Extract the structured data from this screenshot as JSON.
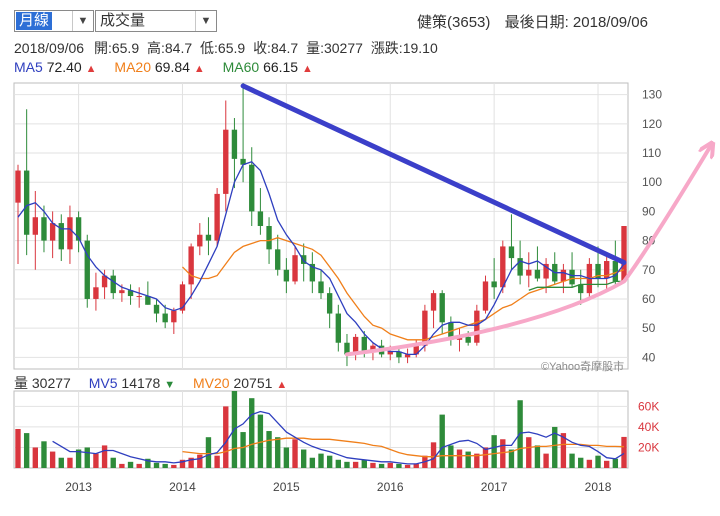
{
  "controls": {
    "period": {
      "value": "月線"
    },
    "indicator": {
      "value": "成交量"
    }
  },
  "header": {
    "stock": "健策(3653)",
    "last_date_label": "最後日期:",
    "last_date": "2018/09/06"
  },
  "quote": {
    "date": "2018/09/06",
    "open_label": "開:",
    "open": "65.9",
    "high_label": "高:",
    "high": "84.7",
    "low_label": "低:",
    "low": "65.9",
    "close_label": "收:",
    "close": "84.7",
    "volume_label": "量:",
    "volume": "30277",
    "change_label": "漲跌:",
    "change": "19.10"
  },
  "ma_legend": [
    {
      "name": "MA5",
      "value": "72.40",
      "dir": "▲",
      "color": "#2f3fbf"
    },
    {
      "name": "MA20",
      "value": "69.84",
      "dir": "▲",
      "color": "#f07f1a"
    },
    {
      "name": "MA60",
      "value": "66.15",
      "dir": "▲",
      "color": "#2e8b3a"
    }
  ],
  "vol_legend": {
    "vol": {
      "label": "量",
      "value": "30277"
    },
    "mv5": {
      "label": "MV5",
      "value": "14178",
      "dir": "▼",
      "color": "#2f3fbf"
    },
    "mv20": {
      "label": "MV20",
      "value": "20751",
      "dir": "▲",
      "color": "#f07f1a"
    }
  },
  "watermark": "©Yahoo奇摩股市",
  "colors": {
    "up": "#d9363e",
    "down": "#2e8b3a",
    "trendline": "#3b3fc9",
    "arrow": "#f7a8c8",
    "grid": "#e2e2e2"
  },
  "chart_data": [
    {
      "type": "candlestick",
      "ylim": [
        36,
        134
      ],
      "yticks": [
        40,
        50,
        60,
        70,
        80,
        90,
        100,
        110,
        120,
        130
      ],
      "x_labels": [
        "2013",
        "2014",
        "2015",
        "2016",
        "2017",
        "2018"
      ],
      "x_label_index": [
        7,
        19,
        31,
        43,
        55,
        67
      ],
      "ohlc": [
        [
          93,
          106,
          72,
          104
        ],
        [
          104,
          125,
          75,
          82
        ],
        [
          82,
          97,
          70,
          88
        ],
        [
          88,
          92,
          76,
          80
        ],
        [
          80,
          90,
          74,
          86
        ],
        [
          86,
          89,
          73,
          77
        ],
        [
          77,
          92,
          72,
          88
        ],
        [
          88,
          90,
          76,
          80
        ],
        [
          80,
          82,
          57,
          60
        ],
        [
          60,
          69,
          56,
          64
        ],
        [
          64,
          70,
          60,
          68
        ],
        [
          68,
          70,
          60,
          62
        ],
        [
          62,
          65,
          59,
          63
        ],
        [
          63,
          65,
          58,
          61
        ],
        [
          61,
          64,
          57,
          61
        ],
        [
          61,
          66,
          58,
          58
        ],
        [
          58,
          60,
          52,
          55
        ],
        [
          55,
          58,
          50,
          52
        ],
        [
          52,
          57,
          48,
          56
        ],
        [
          56,
          66,
          55,
          65
        ],
        [
          65,
          79,
          60,
          78
        ],
        [
          78,
          86,
          75,
          82
        ],
        [
          82,
          88,
          75,
          80
        ],
        [
          80,
          98,
          78,
          96
        ],
        [
          96,
          128,
          90,
          118
        ],
        [
          118,
          122,
          98,
          108
        ],
        [
          108,
          134,
          100,
          106
        ],
        [
          106,
          112,
          85,
          90
        ],
        [
          90,
          98,
          82,
          85
        ],
        [
          85,
          88,
          72,
          77
        ],
        [
          77,
          82,
          68,
          70
        ],
        [
          70,
          74,
          62,
          66
        ],
        [
          66,
          78,
          65,
          75
        ],
        [
          75,
          79,
          66,
          72
        ],
        [
          72,
          76,
          62,
          66
        ],
        [
          66,
          70,
          60,
          62
        ],
        [
          62,
          64,
          50,
          55
        ],
        [
          55,
          58,
          42,
          45
        ],
        [
          45,
          48,
          37,
          41
        ],
        [
          41,
          48,
          39,
          47
        ],
        [
          47,
          49,
          40,
          42
        ],
        [
          42,
          45,
          39,
          44
        ],
        [
          44,
          46,
          40,
          41
        ],
        [
          41,
          44,
          39,
          42
        ],
        [
          42,
          44,
          38,
          40
        ],
        [
          40,
          43,
          38,
          41
        ],
        [
          41,
          46,
          40,
          44
        ],
        [
          44,
          58,
          42,
          56
        ],
        [
          56,
          63,
          50,
          62
        ],
        [
          62,
          63,
          48,
          52
        ],
        [
          52,
          54,
          44,
          46
        ],
        [
          46,
          50,
          42,
          47
        ],
        [
          47,
          49,
          44,
          45
        ],
        [
          45,
          58,
          44,
          56
        ],
        [
          56,
          68,
          55,
          66
        ],
        [
          66,
          74,
          60,
          64
        ],
        [
          64,
          80,
          62,
          78
        ],
        [
          78,
          89,
          70,
          74
        ],
        [
          74,
          80,
          65,
          68
        ],
        [
          68,
          76,
          64,
          70
        ],
        [
          70,
          78,
          66,
          67
        ],
        [
          67,
          74,
          62,
          72
        ],
        [
          72,
          76,
          65,
          66
        ],
        [
          66,
          72,
          62,
          70
        ],
        [
          70,
          76,
          64,
          65
        ],
        [
          65,
          70,
          58,
          62
        ],
        [
          62,
          74,
          60,
          72
        ],
        [
          72,
          78,
          64,
          67
        ],
        [
          67,
          76,
          63,
          73
        ],
        [
          73,
          80,
          64,
          66
        ],
        [
          66,
          85,
          66,
          85
        ]
      ],
      "ma5": [
        88,
        92,
        93,
        90,
        86,
        84,
        84,
        81,
        75,
        71,
        68,
        66,
        64,
        63,
        62,
        61,
        60,
        57,
        56,
        57,
        61,
        66,
        72,
        78,
        89,
        100,
        106,
        107,
        104,
        96,
        87,
        82,
        78,
        73,
        71,
        70,
        67,
        61,
        55,
        52,
        48,
        45,
        43,
        42,
        42,
        41,
        41,
        44,
        48,
        51,
        52,
        52,
        51,
        51,
        53,
        58,
        64,
        70,
        73,
        72,
        73,
        71,
        69,
        69,
        68,
        68,
        67,
        67,
        67,
        68,
        72
      ],
      "ma20": [
        null,
        null,
        null,
        null,
        null,
        null,
        null,
        null,
        null,
        null,
        null,
        null,
        null,
        null,
        null,
        null,
        null,
        null,
        null,
        71,
        68,
        67,
        67,
        68,
        72,
        76,
        78,
        79,
        80,
        80,
        81,
        80,
        79,
        78,
        77,
        75,
        71,
        67,
        62,
        58,
        54,
        51,
        50,
        48,
        47,
        46,
        46,
        46,
        47,
        48,
        49,
        50,
        51,
        52,
        53,
        55,
        57,
        58,
        60,
        62,
        63,
        64,
        65,
        66,
        67,
        67,
        67,
        68,
        68,
        69,
        70
      ],
      "ma60": [
        null,
        null,
        null,
        null,
        null,
        null,
        null,
        null,
        null,
        null,
        null,
        null,
        null,
        null,
        null,
        null,
        null,
        null,
        null,
        null,
        null,
        null,
        null,
        null,
        null,
        null,
        null,
        null,
        null,
        null,
        null,
        null,
        null,
        null,
        null,
        null,
        null,
        null,
        null,
        null,
        null,
        null,
        null,
        null,
        null,
        null,
        null,
        null,
        null,
        null,
        null,
        null,
        null,
        null,
        null,
        null,
        null,
        null,
        null,
        63,
        64,
        64,
        64,
        64,
        64,
        65,
        65,
        65,
        65,
        66,
        66
      ]
    },
    {
      "type": "bar",
      "ylim": [
        0,
        75000
      ],
      "yticks": [
        20000,
        40000,
        60000
      ],
      "ytick_labels": [
        "20K",
        "40K",
        "60K"
      ],
      "volume": [
        38000,
        34000,
        20000,
        26000,
        16000,
        10000,
        10000,
        18000,
        20000,
        14000,
        22000,
        10000,
        4000,
        6000,
        4000,
        9000,
        5000,
        4000,
        3000,
        8000,
        10000,
        13000,
        30000,
        12000,
        60000,
        75000,
        35000,
        68000,
        52000,
        36000,
        30000,
        20000,
        28000,
        18000,
        10000,
        14000,
        12000,
        8000,
        6000,
        6000,
        8000,
        5000,
        4000,
        5000,
        4000,
        3000,
        4000,
        12000,
        25000,
        52000,
        22000,
        18000,
        16000,
        14000,
        20000,
        32000,
        28000,
        18000,
        66000,
        30000,
        22000,
        14000,
        40000,
        34000,
        14000,
        10000,
        8000,
        12000,
        7000,
        9000,
        30277
      ],
      "mv5": [
        null,
        null,
        null,
        null,
        26000,
        21000,
        16000,
        16000,
        15000,
        14000,
        17000,
        17000,
        14000,
        11000,
        9000,
        7000,
        6000,
        6000,
        5000,
        6000,
        8000,
        9000,
        13000,
        15000,
        25000,
        38000,
        43000,
        52000,
        55000,
        53000,
        44000,
        35000,
        30000,
        25000,
        21000,
        18000,
        16000,
        13000,
        10000,
        9000,
        8000,
        7000,
        6000,
        6000,
        5000,
        4000,
        4000,
        6000,
        9000,
        20000,
        23000,
        26000,
        27000,
        24000,
        18000,
        20000,
        22000,
        22000,
        34000,
        35000,
        33000,
        30000,
        34000,
        30000,
        25000,
        22000,
        21000,
        16000,
        10000,
        9000,
        14178
      ],
      "mv20": [
        null,
        null,
        null,
        null,
        null,
        null,
        null,
        null,
        null,
        null,
        null,
        null,
        null,
        null,
        null,
        null,
        null,
        null,
        null,
        16000,
        15000,
        14000,
        14000,
        14000,
        16000,
        19000,
        20000,
        23000,
        25000,
        27000,
        28000,
        29000,
        29000,
        29000,
        28000,
        28000,
        28000,
        27000,
        26000,
        25000,
        24000,
        22000,
        21000,
        18000,
        15000,
        13000,
        12000,
        11000,
        11000,
        12000,
        12000,
        12000,
        12000,
        12000,
        13000,
        14000,
        15000,
        16000,
        19000,
        20000,
        21000,
        21000,
        22000,
        23000,
        23000,
        23000,
        22000,
        22000,
        21000,
        21000,
        20751
      ]
    }
  ]
}
